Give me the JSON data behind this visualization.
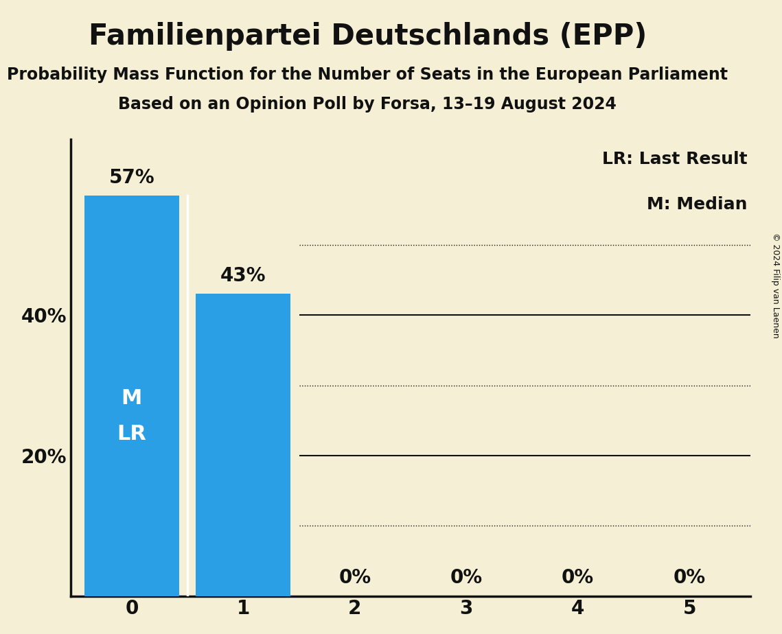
{
  "title": "Familienpartei Deutschlands (EPP)",
  "subtitle1": "Probability Mass Function for the Number of Seats in the European Parliament",
  "subtitle2": "Based on an Opinion Poll by Forsa, 13–19 August 2024",
  "copyright": "© 2024 Filip van Laenen",
  "categories": [
    0,
    1,
    2,
    3,
    4,
    5
  ],
  "values": [
    0.57,
    0.43,
    0.0,
    0.0,
    0.0,
    0.0
  ],
  "labels": [
    "57%",
    "43%",
    "0%",
    "0%",
    "0%",
    "0%"
  ],
  "bar_color": "#2B9FE6",
  "background_color": "#f5f0d5",
  "text_color": "#111111",
  "bar_label_color_inside": "#ffffff",
  "bar_label_color_outside": "#111111",
  "median_bar": 0,
  "lr_bar": 0,
  "legend_lr": "LR: Last Result",
  "legend_m": "M: Median",
  "ylim_max": 0.65,
  "yticks": [
    0.2,
    0.4
  ],
  "ytick_labels": [
    "20%",
    "40%"
  ],
  "solid_gridlines": [
    0.2,
    0.4
  ],
  "dotted_gridlines": [
    0.1,
    0.3,
    0.5
  ],
  "title_fontsize": 30,
  "subtitle_fontsize": 17,
  "axis_label_fontsize": 20,
  "bar_label_fontsize": 20,
  "inside_label_fontsize": 22,
  "legend_fontsize": 18,
  "copyright_fontsize": 9
}
